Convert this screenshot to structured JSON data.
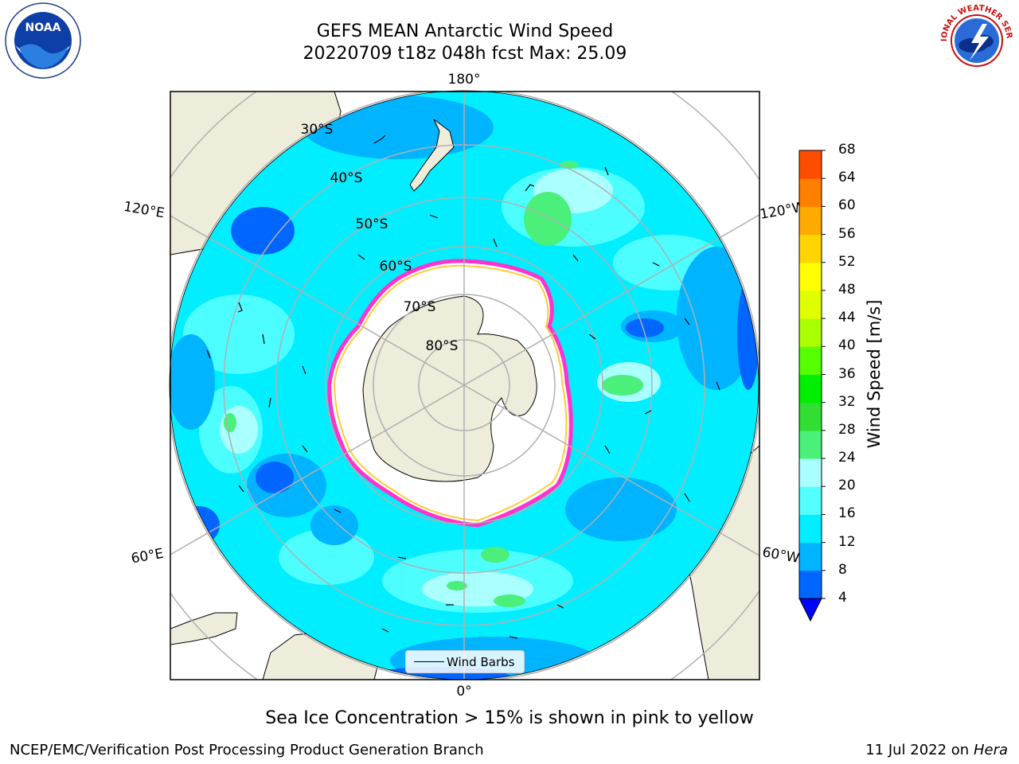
{
  "title_line1": "GEFS MEAN Antarctic Wind Speed",
  "title_line2": "20220709 t18z 048h fcst   Max: 25.09",
  "logos": {
    "noaa_text": "NOAA",
    "nws_text": "NATIONAL WEATHER SERVICE"
  },
  "map": {
    "projection": "south-polar-stereographic",
    "lon_labels": {
      "top": "180°",
      "bottom": "0°",
      "upper_left": "120°E",
      "upper_right": "120°W",
      "lower_left": "60°E",
      "lower_right": "60°W"
    },
    "lat_labels": [
      "30°S",
      "40°S",
      "50°S",
      "60°S",
      "70°S",
      "80°S"
    ],
    "legend_label": "Wind Barbs",
    "colors": {
      "land": "#eeecdb",
      "sea_ice": "#ffffff",
      "ice_edge": "#ff33cc",
      "ice_edge_inner": "#ffcc33",
      "gridlines": "#b0b0b0"
    }
  },
  "colorbar": {
    "label": "Wind Speed [m/s]",
    "ticks": [
      "4",
      "8",
      "12",
      "16",
      "20",
      "24",
      "28",
      "32",
      "36",
      "40",
      "44",
      "48",
      "52",
      "56",
      "60",
      "64",
      "68"
    ],
    "colors": [
      "#0066ff",
      "#00b4ff",
      "#00eeff",
      "#55ffff",
      "#aaffff",
      "#4af07a",
      "#33dd33",
      "#00ee00",
      "#55ff00",
      "#aaff00",
      "#dfff00",
      "#ffff00",
      "#ffd400",
      "#ffaa00",
      "#ff7f00",
      "#ff4d00",
      "#ff0000"
    ],
    "under_color": "#0000ff",
    "extend": "min"
  },
  "caption": "Sea Ice Concentration > 15% is shown in pink to yellow",
  "footer": {
    "left": "NCEP/EMC/Verification Post Processing Product Generation Branch",
    "right_prefix": "11 Jul 2022 on ",
    "right_machine": "Hera"
  }
}
